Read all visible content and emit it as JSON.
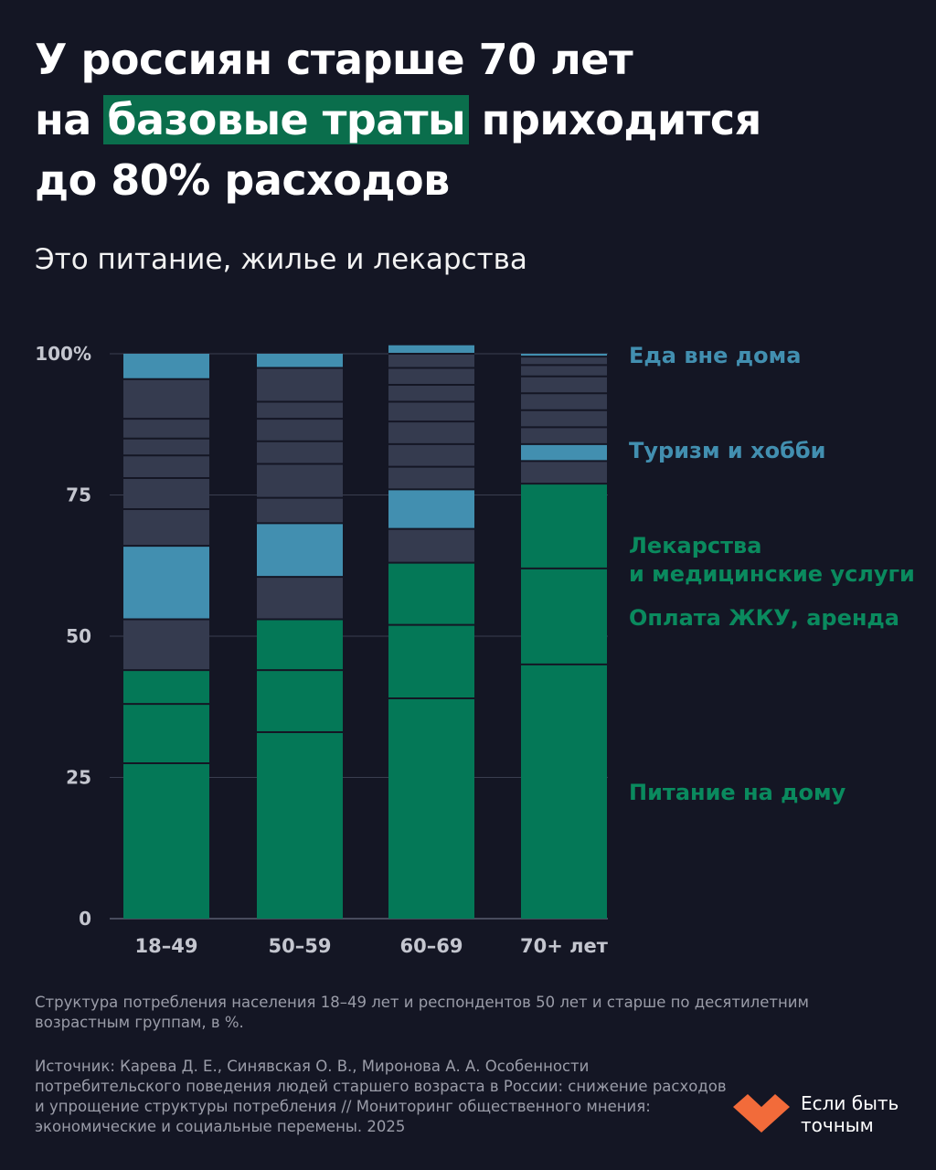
{
  "title": {
    "line1": "У россиян старше 70 лет",
    "line2_prefix": "на",
    "line2_highlight": "базовые траты",
    "line2_suffix": "приходится",
    "line3": "до 80% расходов"
  },
  "subtitle": "Это питание, жилье и лекарства",
  "colors": {
    "background": "#141624",
    "basic": "#047857",
    "leisure": "#428fb0",
    "other": "#353b4f",
    "highlight": "#0a6e4c",
    "divider": "#141624",
    "grid": "#3a3e4f",
    "axis_text": "#c4c6cf"
  },
  "legend": [
    {
      "label": "Еда вне дома",
      "color": "#428fb0"
    },
    {
      "label": "Туризм и хобби",
      "color": "#428fb0"
    },
    {
      "label": "Лекарства\nи медицинские услуги",
      "color": "#0a8a5e"
    },
    {
      "label": "Оплата ЖКУ, аренда",
      "color": "#0a8a5e"
    },
    {
      "label": "Питание на дому",
      "color": "#0a8a5e"
    }
  ],
  "chart_data": {
    "type": "bar",
    "stacked": true,
    "categories": [
      "18–49",
      "50–59",
      "60–69",
      "70+ лет"
    ],
    "ylim": [
      0,
      100
    ],
    "yticks": [
      0,
      25,
      50,
      75,
      100
    ],
    "ytick_labels": [
      "0",
      "25",
      "50",
      "75",
      "100%"
    ],
    "grid": true,
    "legend_position": "right",
    "stacks": [
      [
        {
          "value": 27.5,
          "kind": "basic"
        },
        {
          "value": 10.5,
          "kind": "basic"
        },
        {
          "value": 6,
          "kind": "basic"
        },
        {
          "value": 9,
          "kind": "other"
        },
        {
          "value": 13,
          "kind": "leisure"
        },
        {
          "value": 6.5,
          "kind": "other"
        },
        {
          "value": 5.5,
          "kind": "other"
        },
        {
          "value": 4,
          "kind": "other"
        },
        {
          "value": 3,
          "kind": "other"
        },
        {
          "value": 3.5,
          "kind": "other"
        },
        {
          "value": 7,
          "kind": "other"
        },
        {
          "value": 4.5,
          "kind": "leisure"
        }
      ],
      [
        {
          "value": 33,
          "kind": "basic"
        },
        {
          "value": 11,
          "kind": "basic"
        },
        {
          "value": 9,
          "kind": "basic"
        },
        {
          "value": 7.5,
          "kind": "other"
        },
        {
          "value": 9.5,
          "kind": "leisure"
        },
        {
          "value": 4.5,
          "kind": "other"
        },
        {
          "value": 6,
          "kind": "other"
        },
        {
          "value": 4,
          "kind": "other"
        },
        {
          "value": 4,
          "kind": "other"
        },
        {
          "value": 3,
          "kind": "other"
        },
        {
          "value": 6,
          "kind": "other"
        },
        {
          "value": 2.5,
          "kind": "leisure"
        }
      ],
      [
        {
          "value": 39,
          "kind": "basic"
        },
        {
          "value": 13,
          "kind": "basic"
        },
        {
          "value": 11,
          "kind": "basic"
        },
        {
          "value": 6,
          "kind": "other"
        },
        {
          "value": 7,
          "kind": "leisure"
        },
        {
          "value": 4,
          "kind": "other"
        },
        {
          "value": 4,
          "kind": "other"
        },
        {
          "value": 4,
          "kind": "other"
        },
        {
          "value": 3.5,
          "kind": "other"
        },
        {
          "value": 3,
          "kind": "other"
        },
        {
          "value": 3,
          "kind": "other"
        },
        {
          "value": 2.5,
          "kind": "other"
        },
        {
          "value": 1.5,
          "kind": "leisure"
        }
      ],
      [
        {
          "value": 45,
          "kind": "basic"
        },
        {
          "value": 17,
          "kind": "basic"
        },
        {
          "value": 15,
          "kind": "basic"
        },
        {
          "value": 4,
          "kind": "other"
        },
        {
          "value": 3,
          "kind": "leisure"
        },
        {
          "value": 3,
          "kind": "other"
        },
        {
          "value": 3,
          "kind": "other"
        },
        {
          "value": 3,
          "kind": "other"
        },
        {
          "value": 3,
          "kind": "other"
        },
        {
          "value": 2,
          "kind": "other"
        },
        {
          "value": 1.5,
          "kind": "other"
        },
        {
          "value": 0.5,
          "kind": "leisure"
        }
      ]
    ]
  },
  "note": "Структура потребления населения 18–49 лет и респондентов 50 лет и старше по десятилетним возрастным группам, в %.",
  "source": "Источник: Карева Д. Е., Синявская О. В., Миронова А. А. Особенности потребительского поведения людей старшего возраста в России: снижение расходов и упрощение структуры потребления // Мониторинг общественного мнения: экономические и социальные перемены. 2025",
  "logo": {
    "line1": "Если быть",
    "line2": "точным",
    "color": "#f26b3a"
  }
}
